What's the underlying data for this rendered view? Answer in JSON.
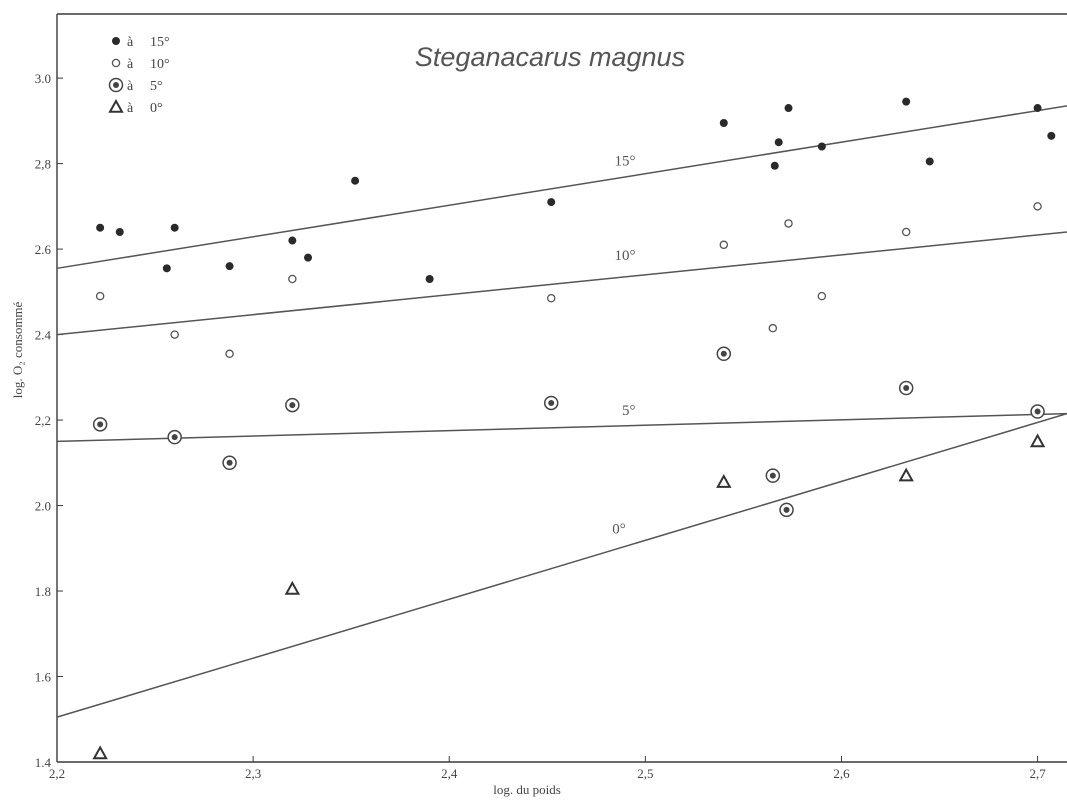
{
  "chart_data": {
    "type": "scatter",
    "title": "Steganacarus magnus",
    "xlabel": "log. du poids",
    "ylabel": "log. O₂ consommé",
    "xlim": [
      2.2,
      2.715
    ],
    "ylim": [
      1.4,
      3.15
    ],
    "x_ticks": [
      "2,2",
      "2,3",
      "2,4",
      "2,5",
      "2,6",
      "2,7"
    ],
    "x_tick_values": [
      2.2,
      2.3,
      2.4,
      2.5,
      2.6,
      2.7
    ],
    "y_ticks": [
      "1.4",
      "1.6",
      "1.8",
      "2.0",
      "2,2",
      "2.4",
      "2.6",
      "2,8",
      "3.0"
    ],
    "y_tick_values": [
      1.4,
      1.6,
      1.8,
      2.0,
      2.2,
      2.4,
      2.6,
      2.8,
      3.0
    ],
    "legend": {
      "placement": "top-left",
      "entries": [
        {
          "symbol": "filled-circle",
          "prefix": "à",
          "label": "15°"
        },
        {
          "symbol": "open-circle",
          "prefix": "à",
          "label": "10°"
        },
        {
          "symbol": "double-circle",
          "prefix": "à",
          "label": "5°"
        },
        {
          "symbol": "triangle",
          "prefix": "à",
          "label": "0°"
        }
      ]
    },
    "series": [
      {
        "name": "15°",
        "marker": "filled-circle",
        "points": [
          [
            2.222,
            2.65
          ],
          [
            2.232,
            2.64
          ],
          [
            2.256,
            2.555
          ],
          [
            2.26,
            2.65
          ],
          [
            2.288,
            2.56
          ],
          [
            2.32,
            2.62
          ],
          [
            2.328,
            2.58
          ],
          [
            2.352,
            2.76
          ],
          [
            2.39,
            2.53
          ],
          [
            2.452,
            2.71
          ],
          [
            2.54,
            2.895
          ],
          [
            2.566,
            2.795
          ],
          [
            2.568,
            2.85
          ],
          [
            2.573,
            2.93
          ],
          [
            2.59,
            2.84
          ],
          [
            2.633,
            2.945
          ],
          [
            2.645,
            2.805
          ],
          [
            2.7,
            2.93
          ],
          [
            2.707,
            2.865
          ]
        ],
        "fit_line": [
          [
            2.2,
            2.555
          ],
          [
            2.715,
            2.935
          ]
        ],
        "line_label": "15°"
      },
      {
        "name": "10°",
        "marker": "open-circle",
        "points": [
          [
            2.222,
            2.49
          ],
          [
            2.26,
            2.4
          ],
          [
            2.288,
            2.355
          ],
          [
            2.32,
            2.53
          ],
          [
            2.452,
            2.485
          ],
          [
            2.54,
            2.61
          ],
          [
            2.565,
            2.415
          ],
          [
            2.573,
            2.66
          ],
          [
            2.59,
            2.49
          ],
          [
            2.633,
            2.64
          ],
          [
            2.7,
            2.7
          ]
        ],
        "fit_line": [
          [
            2.2,
            2.4
          ],
          [
            2.715,
            2.64
          ]
        ],
        "line_label": "10°"
      },
      {
        "name": "5°",
        "marker": "double-circle",
        "points": [
          [
            2.222,
            2.19
          ],
          [
            2.26,
            2.16
          ],
          [
            2.288,
            2.1
          ],
          [
            2.32,
            2.235
          ],
          [
            2.452,
            2.24
          ],
          [
            2.54,
            2.355
          ],
          [
            2.565,
            2.07
          ],
          [
            2.572,
            1.99
          ],
          [
            2.633,
            2.275
          ],
          [
            2.7,
            2.22
          ]
        ],
        "fit_line": [
          [
            2.2,
            2.15
          ],
          [
            2.715,
            2.215
          ]
        ],
        "line_label": "5°"
      },
      {
        "name": "0°",
        "marker": "triangle",
        "points": [
          [
            2.222,
            1.42
          ],
          [
            2.32,
            1.805
          ],
          [
            2.54,
            2.055
          ],
          [
            2.633,
            2.07
          ],
          [
            2.7,
            2.15
          ]
        ],
        "fit_line": [
          [
            2.2,
            1.505
          ],
          [
            2.715,
            2.215
          ]
        ],
        "line_label": "0°"
      }
    ],
    "line_label_positions": [
      [
        2.495,
        2.795
      ],
      [
        2.495,
        2.575
      ],
      [
        2.495,
        2.212
      ],
      [
        2.49,
        1.935
      ]
    ],
    "grid": false
  }
}
